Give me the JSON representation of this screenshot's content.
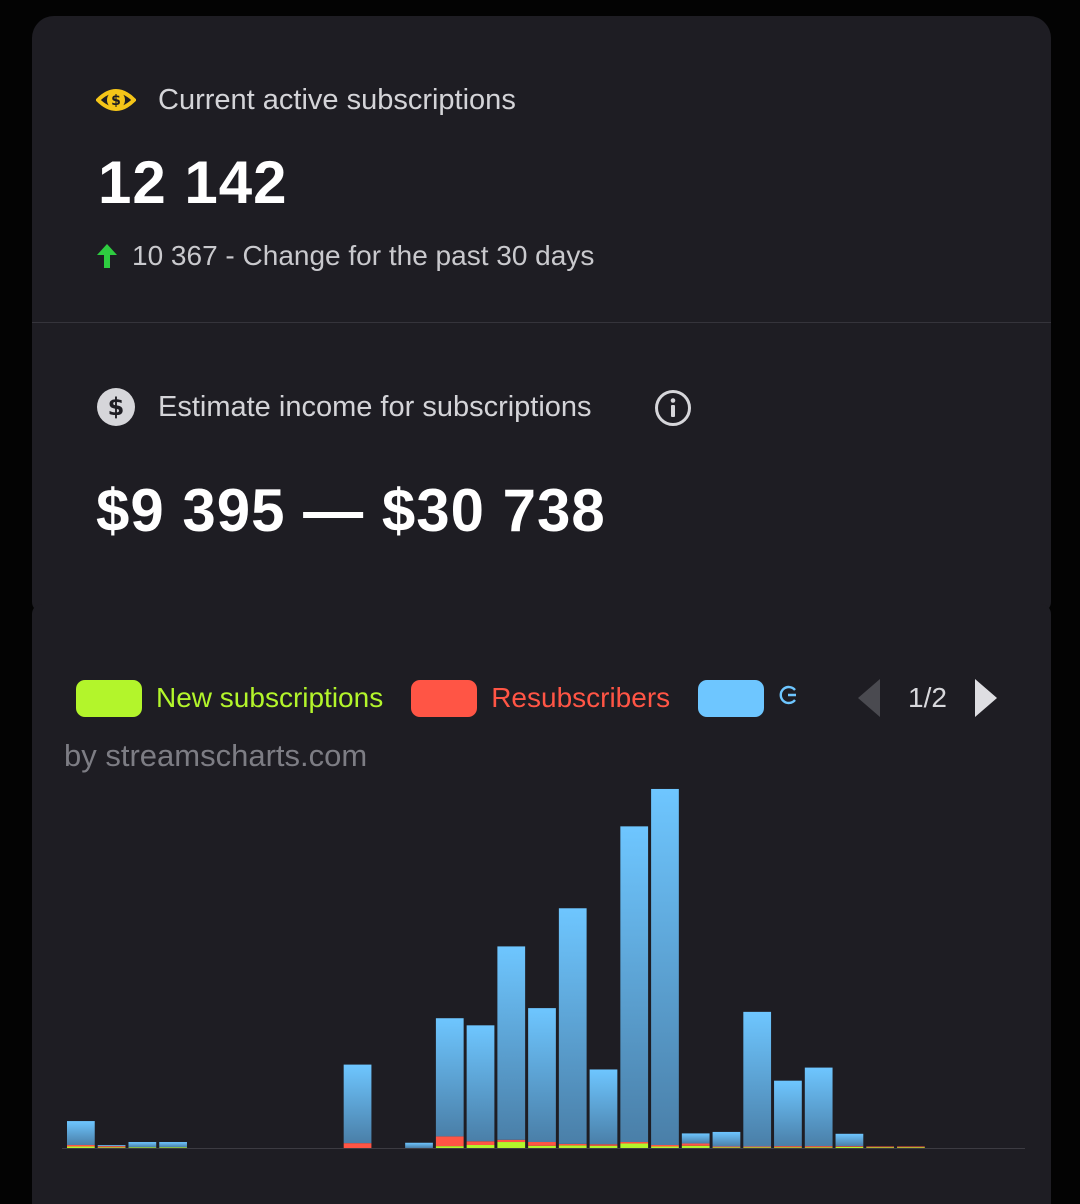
{
  "subscriptions": {
    "label": "Current active subscriptions",
    "value": "12 142",
    "change_text": "10 367 - Change for the past 30 days"
  },
  "income": {
    "label": "Estimate income for subscriptions",
    "value": "$9 395 — $30 738"
  },
  "chart_legend": {
    "credit": "by streamscharts.com",
    "page": "1/2"
  },
  "colors": {
    "new": "#b3f52b",
    "resub": "#ff5545",
    "gift": "#6ec6ff",
    "sub_icon": "#f5c518",
    "arrow_up": "#2ecc40"
  },
  "chart_data": {
    "type": "bar",
    "stacked": true,
    "title": "",
    "xlabel": "",
    "ylabel": "",
    "ylim": [
      0,
      100
    ],
    "series": [
      {
        "name": "New subscriptions",
        "values": [
          0.4,
          0.2,
          0.2,
          0.2,
          0,
          0,
          0,
          0,
          0,
          0,
          0,
          0,
          0.5,
          0.8,
          1.6,
          0.6,
          0.7,
          0.6,
          1.2,
          0.4,
          0.6,
          0.2,
          0.2,
          0.2,
          0.2,
          0.3,
          0.2,
          0.2,
          0,
          0,
          0
        ]
      },
      {
        "name": "Resubscribers",
        "values": [
          0.4,
          0.3,
          0,
          0,
          0,
          0,
          0,
          0,
          0,
          1.3,
          0,
          0,
          2.6,
          1.0,
          0.6,
          1.0,
          0.4,
          0.4,
          0.4,
          0.4,
          0.6,
          0.2,
          0.2,
          0.3,
          0.3,
          0.2,
          0.2,
          0.2,
          0,
          0,
          0
        ]
      },
      {
        "name": "",
        "values": [
          6.4,
          0.3,
          1.4,
          1.4,
          0,
          0,
          0,
          0,
          0,
          21.0,
          0,
          1.4,
          31.6,
          31.0,
          51.7,
          35.8,
          63.0,
          20.0,
          84.4,
          95.2,
          2.7,
          3.9,
          36.0,
          17.5,
          21.0,
          3.3,
          0,
          0,
          0,
          0,
          0
        ]
      }
    ]
  }
}
